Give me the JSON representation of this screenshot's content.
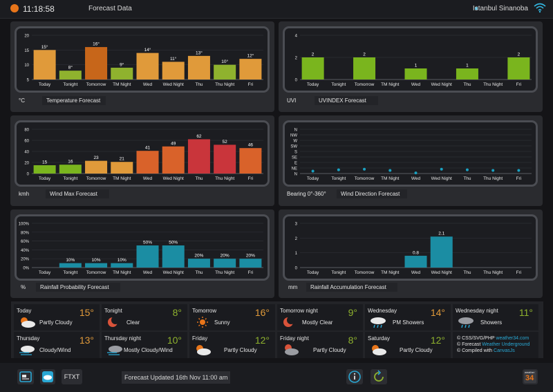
{
  "header": {
    "time": "11:18:58",
    "title": "Forecast Data",
    "location": "Istanbul Sinanoba",
    "colors": {
      "accent": "#33b6e0",
      "logo": "#e8751a"
    }
  },
  "panels": {
    "temp": {
      "unit": "°C",
      "title": "Temperature Forecast",
      "chart_data": {
        "type": "bar",
        "categories": [
          "Today",
          "Tonight",
          "Tomorrow",
          "TM Night",
          "Wed",
          "Wed Night",
          "Thu",
          "Thu Night",
          "Fri"
        ],
        "values": [
          15,
          8,
          16,
          9,
          14,
          11,
          13,
          10,
          12
        ],
        "labels": [
          "15°",
          "8°",
          "16°",
          "9°",
          "14°",
          "11°",
          "13°",
          "10°",
          "12°"
        ],
        "colors": [
          "#e09a3a",
          "#8fb22e",
          "#c7661a",
          "#8fb22e",
          "#e09a3a",
          "#e09a3a",
          "#e09a3a",
          "#8fb22e",
          "#e09a3a"
        ],
        "ylim": [
          5,
          20
        ],
        "yticks": [
          "5",
          "10",
          "15",
          "20"
        ]
      }
    },
    "uv": {
      "unit": "UVI",
      "title": "UVINDEX Forecast",
      "chart_data": {
        "type": "bar",
        "categories": [
          "Today",
          "Tonight",
          "Tomorrow",
          "TM Night",
          "Wed",
          "Wed Night",
          "Thu",
          "Thu Night",
          "Fri"
        ],
        "values": [
          2,
          0,
          2,
          0,
          1,
          0,
          1,
          0,
          2
        ],
        "labels": [
          "2",
          "",
          "2",
          "",
          "1",
          "",
          "1",
          "",
          "2"
        ],
        "colors": [
          "#7ab51e",
          "#7ab51e",
          "#7ab51e",
          "#7ab51e",
          "#7ab51e",
          "#7ab51e",
          "#7ab51e",
          "#7ab51e",
          "#7ab51e"
        ],
        "ylim": [
          0,
          4
        ],
        "yticks": [
          "0",
          "2",
          "4"
        ]
      }
    },
    "wind": {
      "unit": "kmh",
      "title": "Wind Max Forecast",
      "chart_data": {
        "type": "bar",
        "categories": [
          "Today",
          "Tonight",
          "Tomorrow",
          "TM Night",
          "Wed",
          "Wed Night",
          "Thu",
          "Thu Night",
          "Fri"
        ],
        "values": [
          15,
          16,
          23,
          21,
          41,
          49,
          62,
          52,
          46
        ],
        "labels": [
          "15",
          "16",
          "23",
          "21",
          "41",
          "49",
          "62",
          "52",
          "46"
        ],
        "colors": [
          "#7ab51e",
          "#7ab51e",
          "#e09a3a",
          "#e09a3a",
          "#d9622a",
          "#d9622a",
          "#c9353b",
          "#c9353b",
          "#d9622a"
        ],
        "ylim": [
          0,
          80
        ],
        "yticks": [
          "0",
          "20",
          "40",
          "60",
          "80"
        ]
      }
    },
    "dir": {
      "unit": "Bearing 0°-360°",
      "title": "Wind Direction Forecast",
      "chart_data": {
        "type": "scatter",
        "categories": [
          "Today",
          "Tonight",
          "Tomorrow",
          "TM Night",
          "Wed",
          "Wed Night",
          "Thu",
          "Thu Night",
          "Fri"
        ],
        "values": [
          20,
          30,
          35,
          25,
          5,
          35,
          30,
          25,
          25
        ],
        "yticks": [
          "N",
          "NE",
          "E",
          "SE",
          "S",
          "SW",
          "W",
          "NW",
          "N"
        ],
        "ylim": [
          0,
          360
        ],
        "color": "#1aa2c2"
      }
    },
    "rainprob": {
      "unit": "%",
      "title": "Rainfall Probability Forecast",
      "chart_data": {
        "type": "bar",
        "categories": [
          "Today",
          "Tonight",
          "Tomorrow",
          "TM Night",
          "Wed",
          "Wed Night",
          "Thu",
          "Thu Night",
          "Fri"
        ],
        "values": [
          0,
          10,
          10,
          10,
          50,
          50,
          20,
          20,
          20
        ],
        "labels": [
          "",
          "10%",
          "10%",
          "10%",
          "50%",
          "50%",
          "20%",
          "20%",
          "20%"
        ],
        "colors": [
          "#1b8da3",
          "#1b8da3",
          "#1b8da3",
          "#1b8da3",
          "#1b8da3",
          "#1b8da3",
          "#1b8da3",
          "#1b8da3",
          "#1b8da3"
        ],
        "ylim": [
          0,
          100
        ],
        "yticks": [
          "0%",
          "20%",
          "40%",
          "60%",
          "80%",
          "100%"
        ]
      }
    },
    "rainacc": {
      "unit": "mm",
      "title": "Rainfall Accumulation Forecast",
      "chart_data": {
        "type": "bar",
        "categories": [
          "Today",
          "Tonight",
          "Tomorrow",
          "TM Night",
          "Wed",
          "Wed Night",
          "Thu",
          "Thu Night",
          "Fri"
        ],
        "values": [
          0,
          0,
          0,
          0,
          0.8,
          2.1,
          0,
          0,
          0
        ],
        "labels": [
          "",
          "",
          "",
          "",
          "0.8",
          "2.1",
          "",
          "",
          ""
        ],
        "colors": [
          "#1b8da3",
          "#1b8da3",
          "#1b8da3",
          "#1b8da3",
          "#1b8da3",
          "#1b8da3",
          "#1b8da3",
          "#1b8da3",
          "#1b8da3"
        ],
        "ylim": [
          0,
          3
        ],
        "yticks": [
          "0",
          "1",
          "2",
          "3"
        ]
      }
    }
  },
  "forecast_cells": [
    {
      "name": "Today",
      "temp": "15°",
      "desc": "Partly Cloudy",
      "color": "#e09a3a",
      "icon": "partly-cloudy-day-icon"
    },
    {
      "name": "Tonight",
      "temp": "8°",
      "desc": "Clear",
      "color": "#8fb22e",
      "icon": "clear-night-icon"
    },
    {
      "name": "Tomorrow",
      "temp": "16°",
      "desc": "Sunny",
      "color": "#e09a3a",
      "icon": "sunny-icon"
    },
    {
      "name": "Tomorrow night",
      "temp": "9°",
      "desc": "Mostly Clear",
      "color": "#8fb22e",
      "icon": "mostly-clear-night-icon"
    },
    {
      "name": "Wednesday",
      "temp": "14°",
      "desc": "PM Showers",
      "color": "#e09a3a",
      "icon": "showers-day-icon"
    },
    {
      "name": "Wednesday night",
      "temp": "11°",
      "desc": "Showers",
      "color": "#8fb22e",
      "icon": "showers-night-icon"
    },
    {
      "name": "Thursday",
      "temp": "13°",
      "desc": "Cloudy/Wind",
      "color": "#e09a3a",
      "icon": "cloudy-wind-day-icon"
    },
    {
      "name": "Thursday night",
      "temp": "10°",
      "desc": "Mostly Cloudy/Wind",
      "color": "#8fb22e",
      "icon": "cloudy-wind-night-icon"
    },
    {
      "name": "Friday",
      "temp": "12°",
      "desc": "Partly Cloudy",
      "color": "#8fb22e",
      "icon": "partly-cloudy-day-icon"
    },
    {
      "name": "Friday night",
      "temp": "8°",
      "desc": "Partly Cloudy",
      "color": "#8fb22e",
      "icon": "partly-cloudy-night-icon"
    },
    {
      "name": "Saturday",
      "temp": "12°",
      "desc": "Partly Cloudy",
      "color": "#8fb22e",
      "icon": "partly-cloudy-day-icon"
    }
  ],
  "credits": {
    "line1_prefix": "© CSS/SVG/PHP ",
    "line1_link": "weather34.com",
    "line2_prefix": "© Forecast ",
    "line2_link": "Weather Underground",
    "line3_prefix": "© Compiled with ",
    "line3_link": "CanvasJs"
  },
  "footer": {
    "ftxt_label": "FTXT",
    "status": "Forecast Updated 16th Nov 11:00 am",
    "brand_top": "weather",
    "brand_number": "34"
  }
}
